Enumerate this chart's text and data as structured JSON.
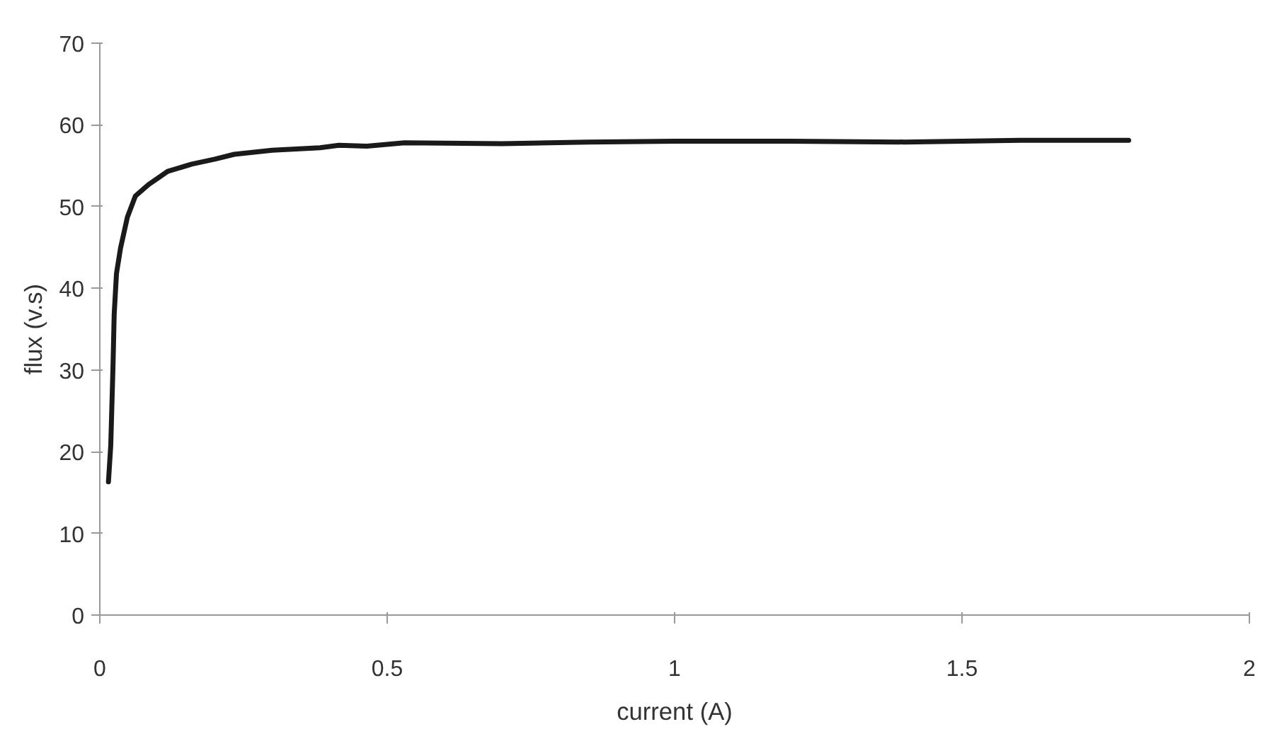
{
  "chart_data": {
    "type": "line",
    "xlabel": "current (A)",
    "ylabel": "flux (v.s)",
    "xlim": [
      0,
      2
    ],
    "xticks": [
      0,
      0.5,
      1,
      1.5,
      2
    ],
    "ylim": [
      0,
      70
    ],
    "yticks": [
      0,
      10,
      20,
      30,
      40,
      50,
      60,
      70
    ],
    "grid": false,
    "marker": "none",
    "line_style": "solid",
    "series": [
      {
        "color": "#1a1a1a",
        "x": [
          0.015,
          0.019,
          0.021,
          0.023,
          0.025,
          0.029,
          0.036,
          0.048,
          0.062,
          0.085,
          0.118,
          0.16,
          0.2,
          0.234,
          0.3,
          0.383,
          0.416,
          0.465,
          0.53,
          0.7,
          0.85,
          1.0,
          1.2,
          1.4,
          1.6,
          1.79
        ],
        "values": [
          16.3,
          20.7,
          25.6,
          30.6,
          36.8,
          41.8,
          44.9,
          48.7,
          51.3,
          52.7,
          54.3,
          55.2,
          55.8,
          56.4,
          56.9,
          57.2,
          57.5,
          57.4,
          57.8,
          57.7,
          57.9,
          58.0,
          58.0,
          57.9,
          58.1,
          58.1
        ]
      }
    ]
  }
}
